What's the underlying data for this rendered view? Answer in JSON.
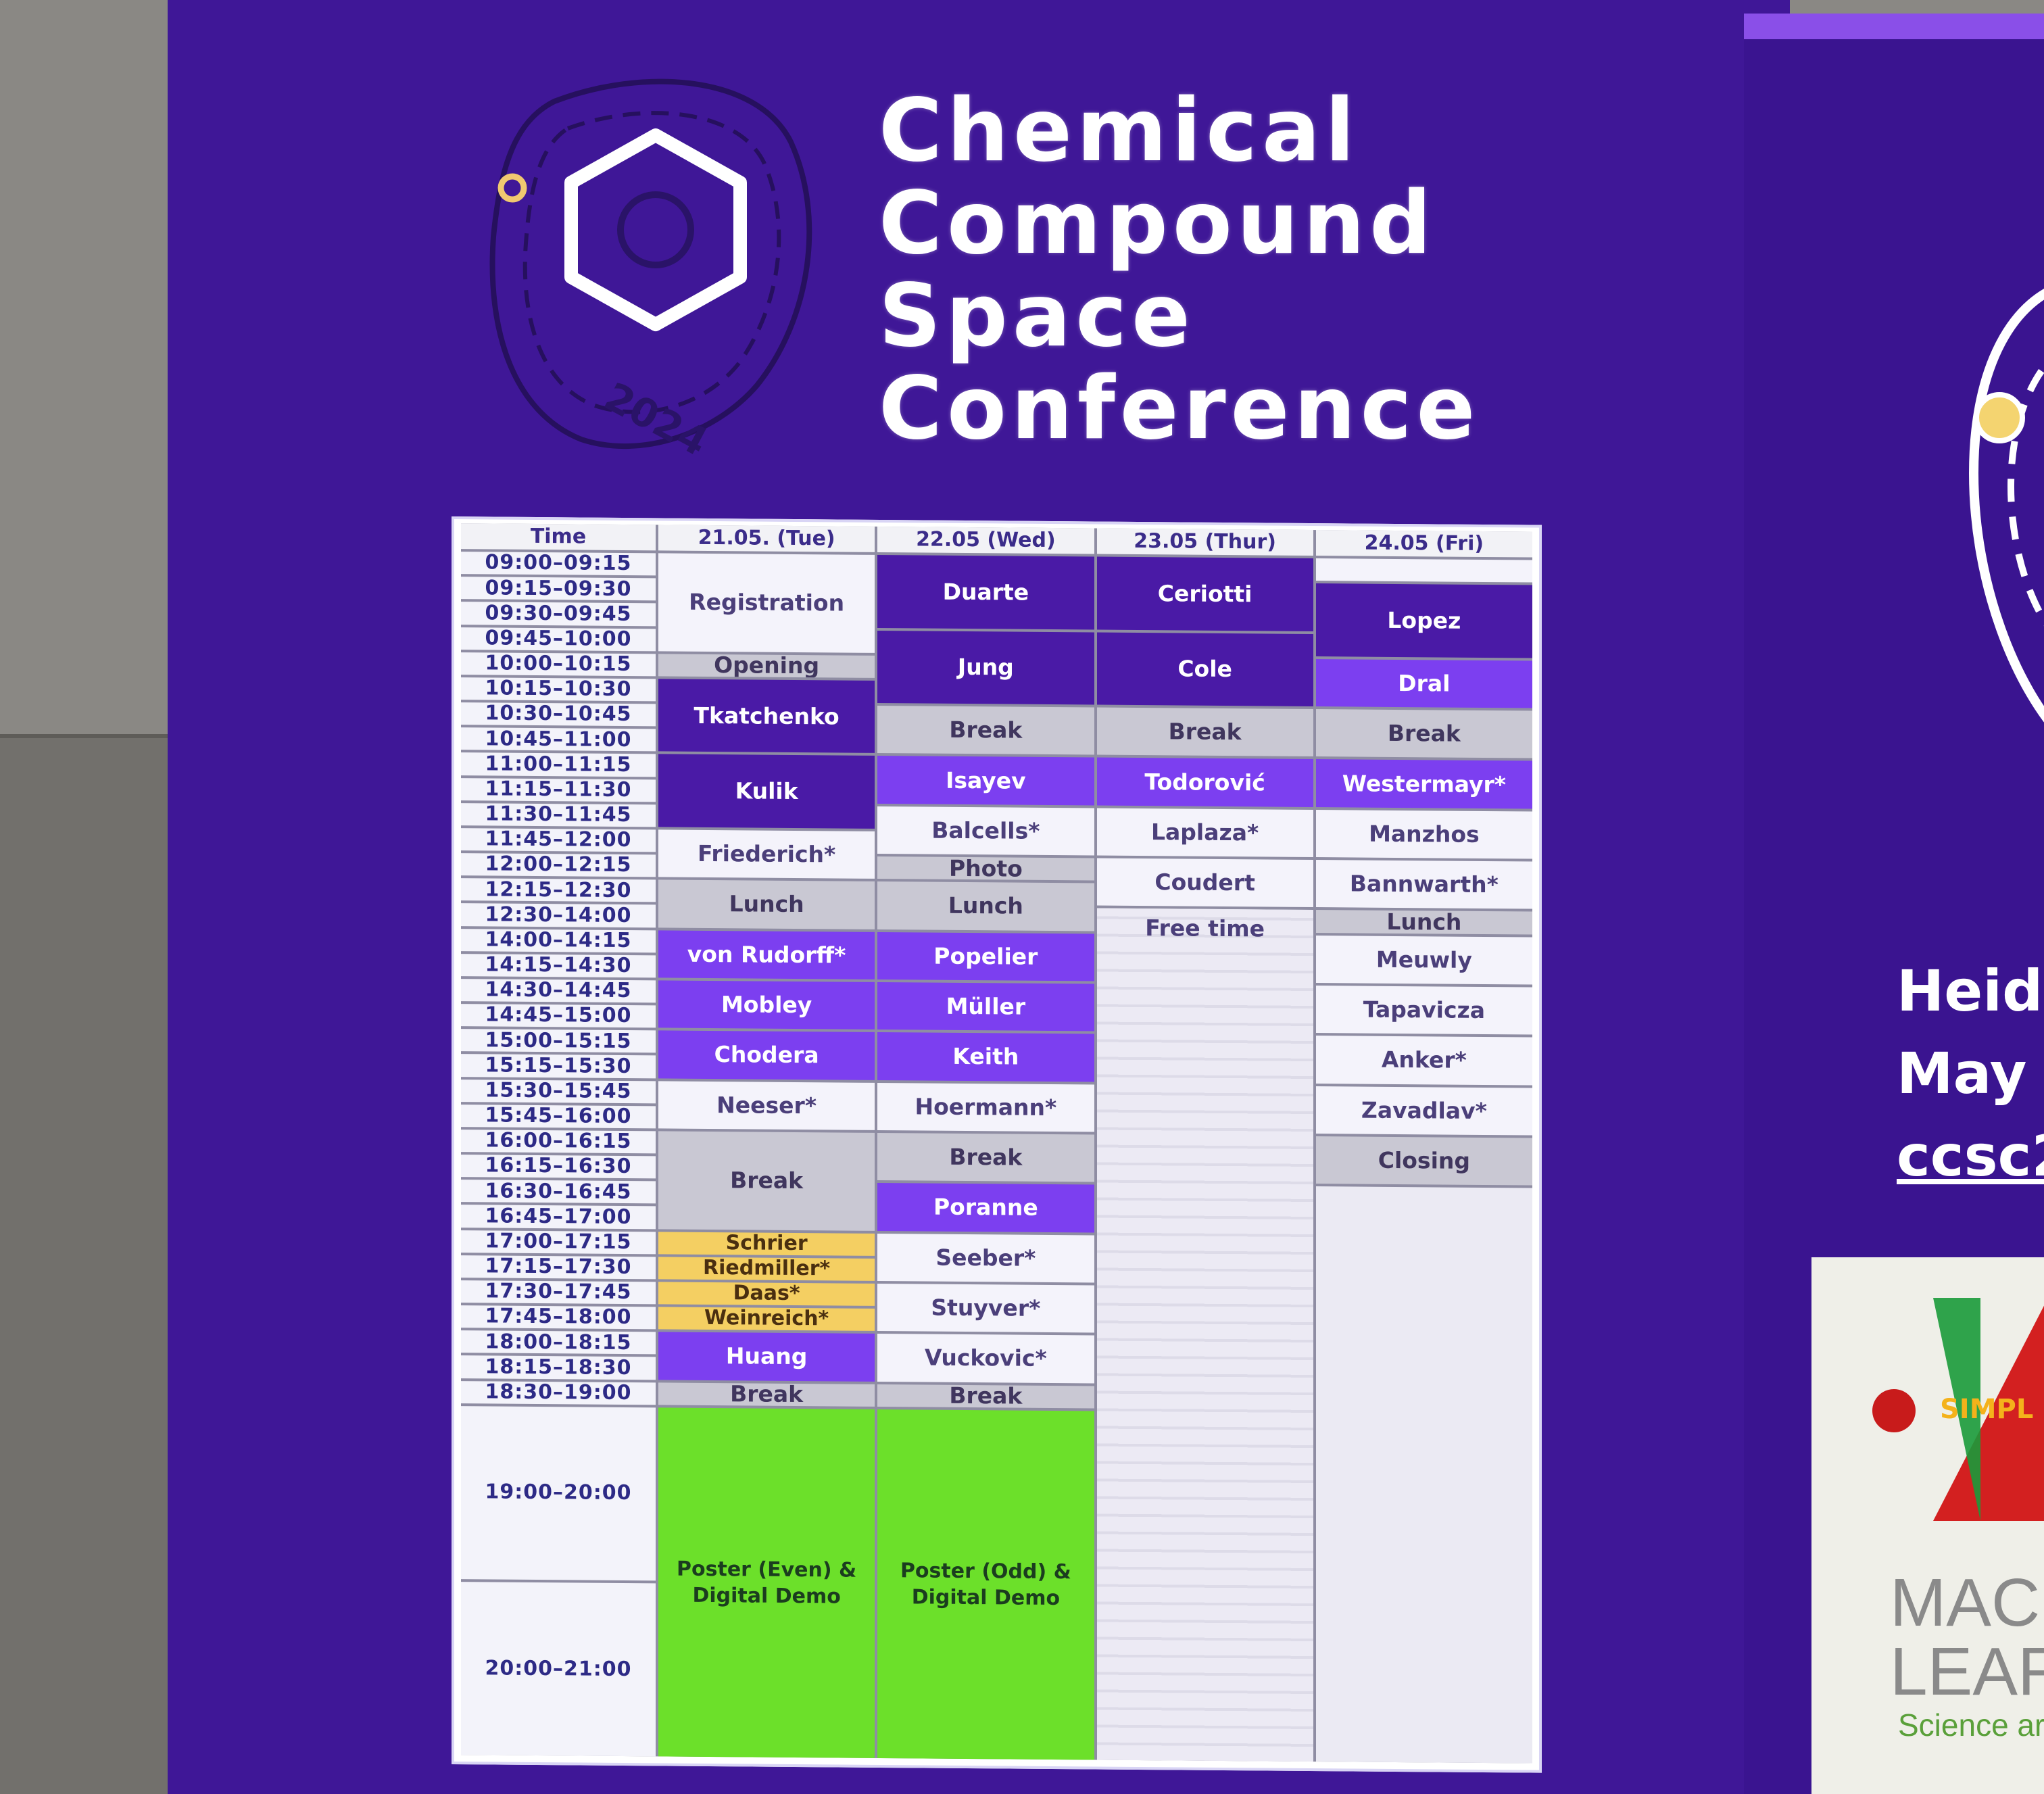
{
  "logo": {
    "year": "2024",
    "title_lines": [
      "Chemical",
      "Compound",
      "Space",
      "Conference"
    ]
  },
  "schedule": {
    "headers": [
      "Time",
      "21.05. (Tue)",
      "22.05 (Wed)",
      "23.05 (Thur)",
      "24.05 (Fri)"
    ],
    "times": [
      "09:00–09:15",
      "09:15–09:30",
      "09:30–09:45",
      "09:45–10:00",
      "10:00–10:15",
      "10:15–10:30",
      "10:30–10:45",
      "10:45–11:00",
      "11:00–11:15",
      "11:15–11:30",
      "11:30–11:45",
      "11:45–12:00",
      "12:00–12:15",
      "12:15–12:30",
      "12:30–14:00",
      "14:00–14:15",
      "14:15–14:30",
      "14:30–14:45",
      "14:45–15:00",
      "15:00–15:15",
      "15:15–15:30",
      "15:30–15:45",
      "15:45–16:00",
      "16:00–16:15",
      "16:15–16:30",
      "16:30–16:45",
      "16:45–17:00",
      "17:00–17:15",
      "17:15–17:30",
      "17:30–17:45",
      "17:45–18:00",
      "18:00–18:15",
      "18:15–18:30",
      "18:30–19:00",
      "19:00–20:00",
      "20:00–21:00"
    ],
    "tue": [
      {
        "label": "Registration"
      },
      {
        "label": "Opening"
      },
      {
        "label": "Tkatchenko"
      },
      {
        "label": "Kulik"
      },
      {
        "label": "Friederich*"
      },
      {
        "label": "Lunch"
      },
      {
        "label": "von Rudorff*"
      },
      {
        "label": "Mobley"
      },
      {
        "label": "Chodera"
      },
      {
        "label": "Neeser*"
      },
      {
        "label": "Break"
      },
      {
        "label": "Schrier"
      },
      {
        "label": "Riedmiller*"
      },
      {
        "label": "Daas*"
      },
      {
        "label": "Weinreich*"
      },
      {
        "label": "Huang"
      },
      {
        "label": "Break"
      },
      {
        "label": "Poster (Even) & Digital Demo"
      }
    ],
    "wed": [
      {
        "label": "Duarte"
      },
      {
        "label": "Jung"
      },
      {
        "label": "Break"
      },
      {
        "label": "Isayev"
      },
      {
        "label": "Balcells*"
      },
      {
        "label": "Photo"
      },
      {
        "label": "Lunch"
      },
      {
        "label": "Popelier"
      },
      {
        "label": "Müller"
      },
      {
        "label": "Keith"
      },
      {
        "label": "Hoermann*"
      },
      {
        "label": "Break"
      },
      {
        "label": "Poranne"
      },
      {
        "label": "Seeber*"
      },
      {
        "label": "Stuyver*"
      },
      {
        "label": "Vuckovic*"
      },
      {
        "label": "Break"
      },
      {
        "label": "Poster (Odd) & Digital Demo"
      }
    ],
    "thu": [
      {
        "label": "Ceriotti"
      },
      {
        "label": "Cole"
      },
      {
        "label": "Break"
      },
      {
        "label": "Todorović"
      },
      {
        "label": "Laplaza*"
      },
      {
        "label": "Coudert"
      },
      {
        "label": "Free time"
      }
    ],
    "fri": [
      {
        "label": ""
      },
      {
        "label": "Lopez"
      },
      {
        "label": "Dral"
      },
      {
        "label": "Break"
      },
      {
        "label": "Westermayr*"
      },
      {
        "label": "Manzhos"
      },
      {
        "label": "Bannwarth*"
      },
      {
        "label": "Lunch"
      },
      {
        "label": "Meuwly"
      },
      {
        "label": "Tapavicza"
      },
      {
        "label": "Anker*"
      },
      {
        "label": "Zavadlav*"
      },
      {
        "label": "Closing"
      },
      {
        "label": ""
      }
    ]
  },
  "right_panel": {
    "line1": "Heide",
    "line2": "May 2",
    "line3": "ccsc2",
    "poster_simpl": "SIMPL",
    "poster_mach": "MACH",
    "poster_lear": "LEAR",
    "poster_sci": "Science ar"
  },
  "colors": {
    "screen_background": "#3f1797",
    "session_dark_purple": "#4a1aa6",
    "session_violet": "#7c3ff0",
    "break_gray": "#c9c8d3",
    "contributed_white": "#f4f3fb",
    "lightning_yellow": "#f4cf62",
    "poster_green": "#6ce02a",
    "logo_dot": "#f0c870"
  }
}
